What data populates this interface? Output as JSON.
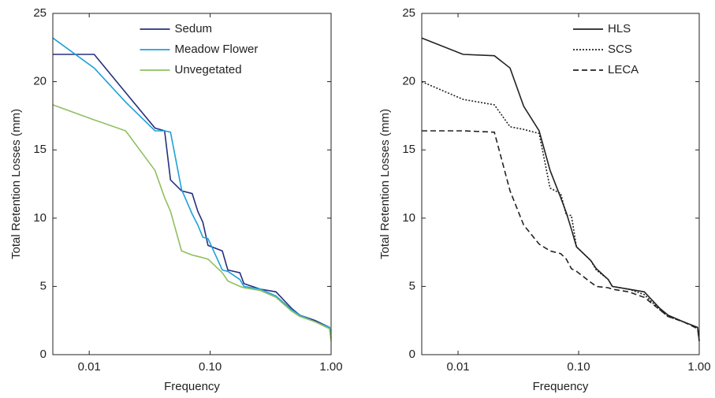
{
  "chart_data": [
    {
      "type": "line",
      "xlabel": "Frequency",
      "ylabel": "Total Retention Losses (mm)",
      "xscale": "log",
      "xlim": [
        0.005,
        1
      ],
      "ylim": [
        0,
        25
      ],
      "xticks": [
        0.01,
        {
          "value": 0.1,
          "label": "0.10"
        },
        {
          "value": 1,
          "label": "1.00"
        }
      ],
      "yticks": [
        0,
        5,
        10,
        15,
        20,
        25
      ],
      "legend": "upper center",
      "x": [
        0.005,
        0.011,
        0.02,
        0.035,
        0.042,
        0.047,
        0.058,
        0.071,
        0.079,
        0.087,
        0.096,
        0.126,
        0.14,
        0.176,
        0.19,
        0.26,
        0.35,
        0.47,
        0.55,
        0.74,
        0.97,
        1.0
      ],
      "series": [
        {
          "name": "Sedum",
          "color": "#25307f",
          "dash": "solid",
          "values": [
            22,
            22,
            19.2,
            16.6,
            16.4,
            12.8,
            12,
            11.8,
            10.5,
            9.7,
            8,
            7.6,
            6.2,
            6,
            5.2,
            4.8,
            4.6,
            3.4,
            2.9,
            2.5,
            2.0,
            1.2
          ]
        },
        {
          "name": "Meadow Flower",
          "color": "#1fa0d8",
          "dash": "solid",
          "values": [
            23.2,
            21,
            18.5,
            16.4,
            16.4,
            16.3,
            12.1,
            10.3,
            9.5,
            8.6,
            8.5,
            6.2,
            6.1,
            5.5,
            5.0,
            4.8,
            4.3,
            3.3,
            2.9,
            2.4,
            2.0,
            1.6
          ]
        },
        {
          "name": "Unvegetated",
          "color": "#8fbf5f",
          "dash": "solid",
          "values": [
            18.3,
            17.2,
            16.4,
            13.5,
            11.5,
            10.5,
            7.6,
            7.3,
            7.2,
            7.1,
            7.0,
            6.0,
            5.4,
            5.0,
            4.9,
            4.7,
            4.2,
            3.2,
            2.8,
            2.4,
            1.9,
            1.0
          ]
        }
      ]
    },
    {
      "type": "line",
      "xlabel": "Frequency",
      "ylabel": "Total Retention Losses (mm)",
      "xscale": "log",
      "xlim": [
        0.005,
        1
      ],
      "ylim": [
        0,
        25
      ],
      "xticks": [
        0.01,
        {
          "value": 0.1,
          "label": "0.10"
        },
        {
          "value": 1,
          "label": "1.00"
        }
      ],
      "yticks": [
        0,
        5,
        10,
        15,
        20,
        25
      ],
      "legend": "upper right",
      "x": [
        0.005,
        0.011,
        0.02,
        0.027,
        0.035,
        0.047,
        0.058,
        0.071,
        0.079,
        0.087,
        0.096,
        0.126,
        0.14,
        0.176,
        0.19,
        0.26,
        0.35,
        0.47,
        0.55,
        0.74,
        0.97,
        1.0
      ],
      "series": [
        {
          "name": "HLS",
          "color": "#222222",
          "dash": "solid",
          "values": [
            23.2,
            22,
            21.9,
            21,
            18.2,
            16.4,
            13.5,
            11.5,
            10.4,
            9.2,
            7.9,
            6.9,
            6.3,
            5.5,
            5.0,
            4.8,
            4.6,
            3.4,
            2.9,
            2.4,
            2.0,
            1.0
          ]
        },
        {
          "name": "SCS",
          "color": "#222222",
          "dash": "dotted",
          "values": [
            20,
            18.7,
            18.3,
            16.7,
            16.5,
            16.2,
            12.2,
            11.8,
            10.2,
            10.2,
            7.9,
            6.9,
            6.2,
            5.5,
            5.0,
            4.8,
            4.4,
            3.3,
            2.8,
            2.4,
            2.0,
            1.0
          ]
        },
        {
          "name": "LECA",
          "color": "#222222",
          "dash": "dashed",
          "values": [
            16.4,
            16.4,
            16.3,
            12,
            9.5,
            8.1,
            7.6,
            7.4,
            7.0,
            6.3,
            6.1,
            5.3,
            5.0,
            4.9,
            4.8,
            4.6,
            4.2,
            3.3,
            2.8,
            2.4,
            1.9,
            1.0
          ]
        }
      ]
    }
  ]
}
